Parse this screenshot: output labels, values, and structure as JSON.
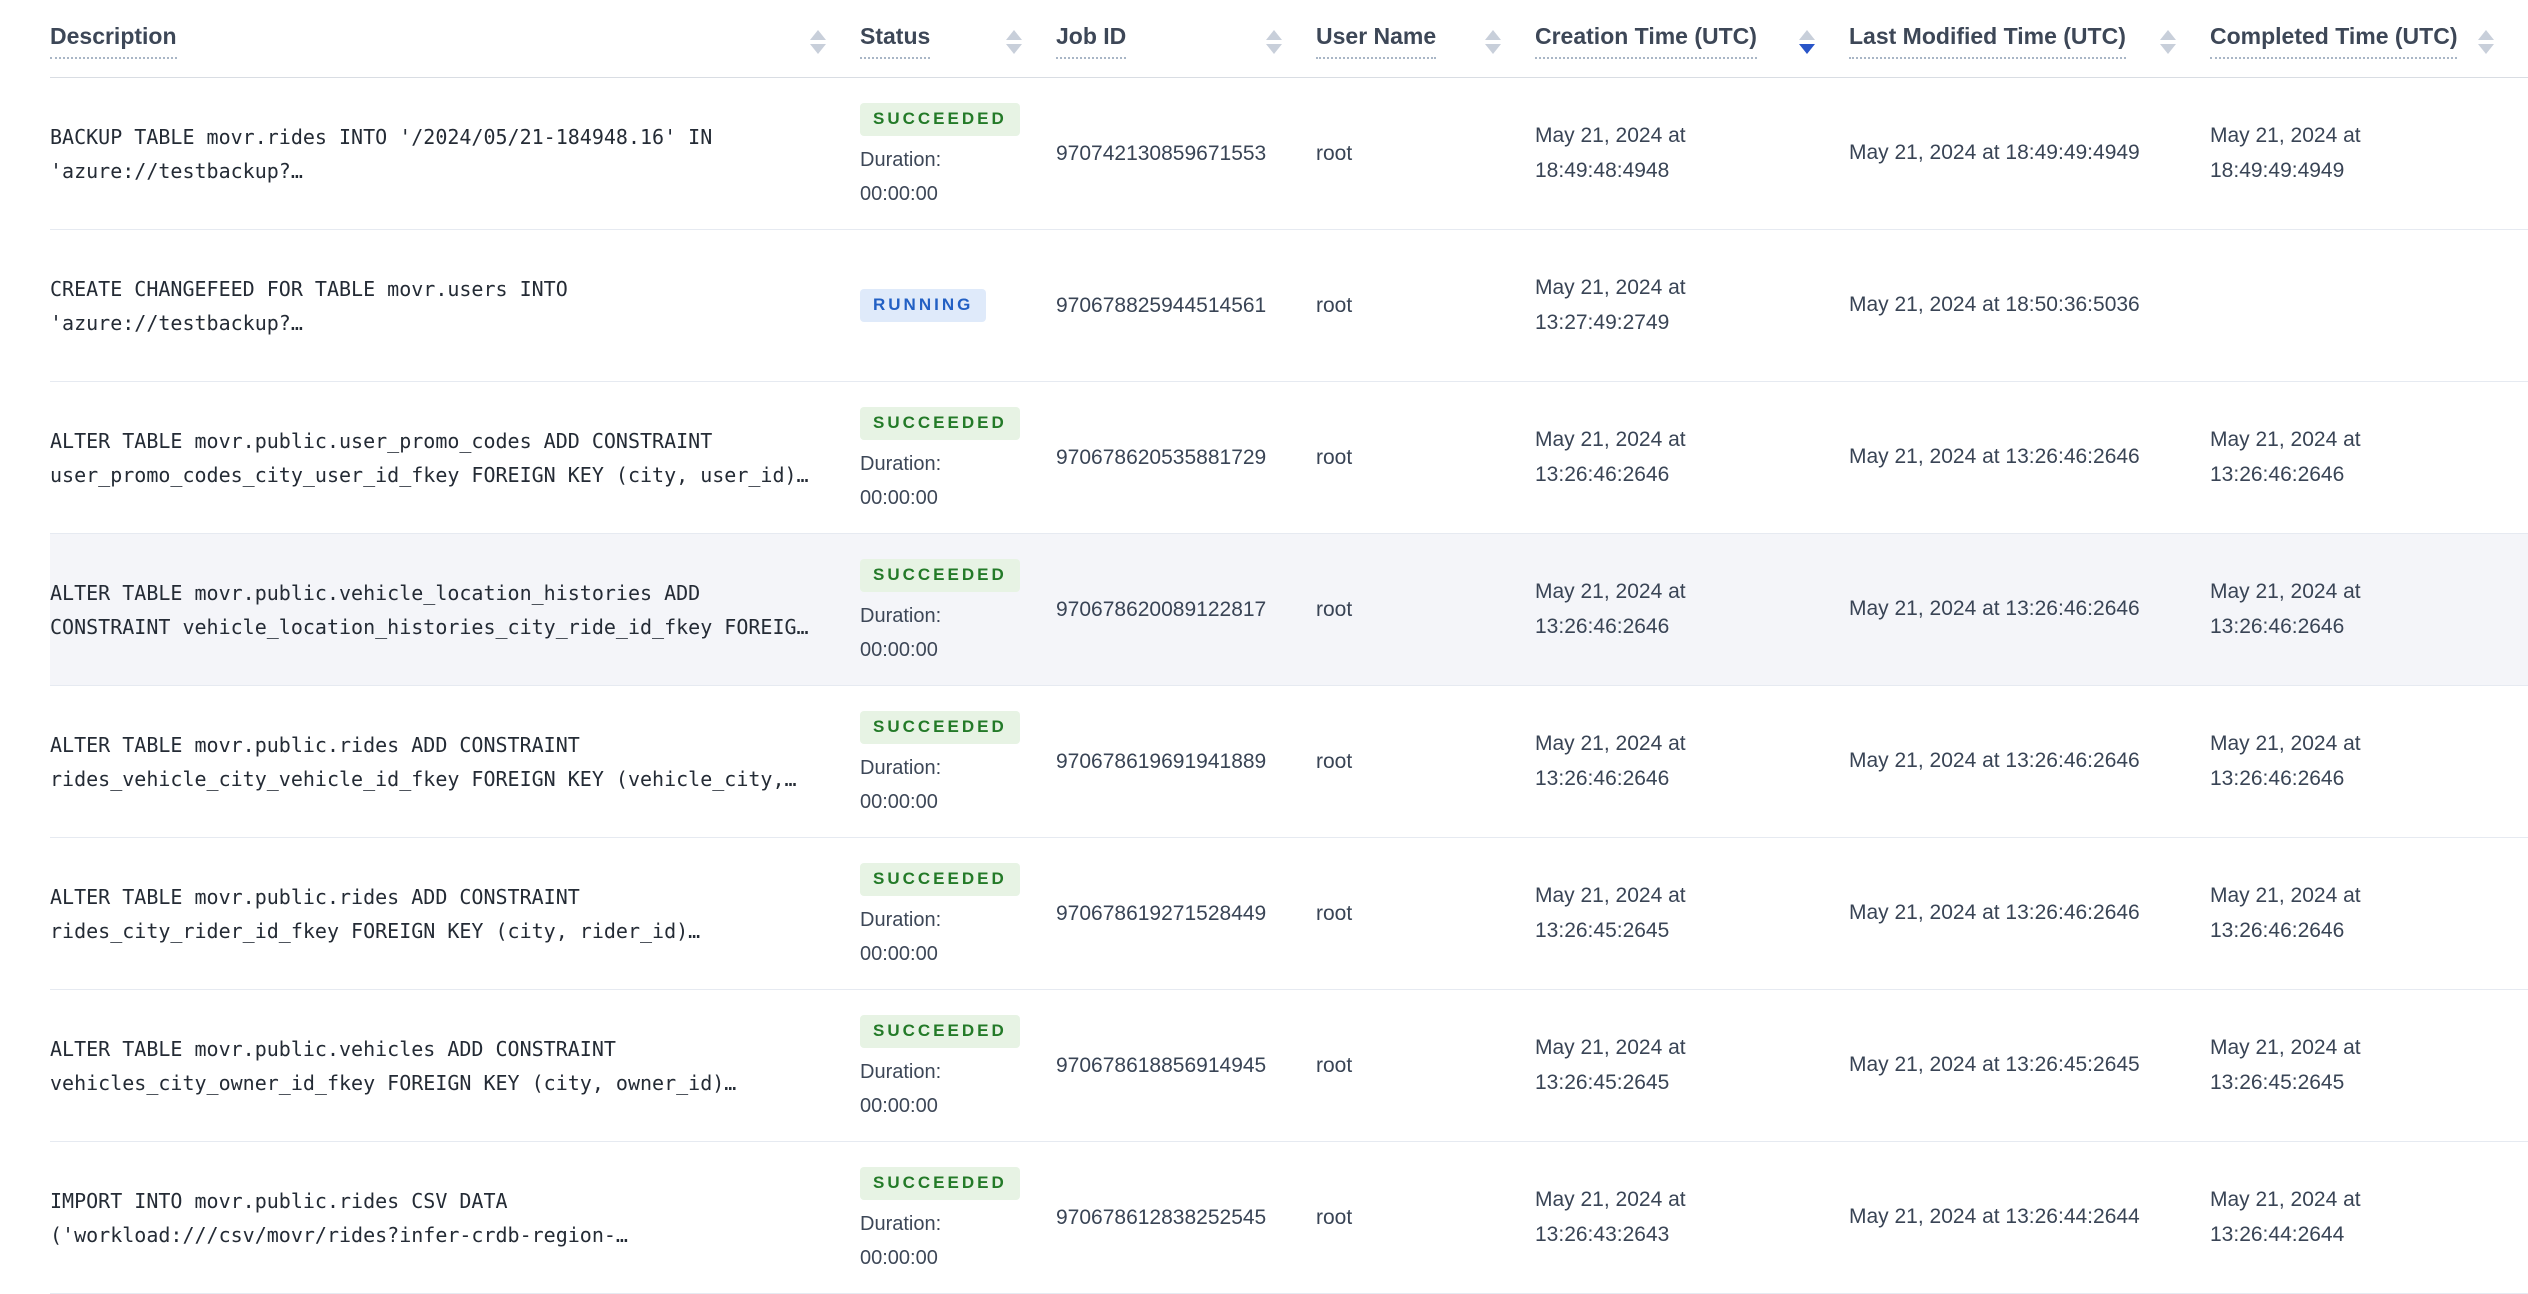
{
  "table": {
    "columns": [
      {
        "key": "description",
        "label": "Description",
        "sort": "none"
      },
      {
        "key": "status",
        "label": "Status",
        "sort": "none"
      },
      {
        "key": "job-id",
        "label": "Job ID",
        "sort": "none"
      },
      {
        "key": "user-name",
        "label": "User Name",
        "sort": "none"
      },
      {
        "key": "creation-time",
        "label": "Creation Time (UTC)",
        "sort": "desc"
      },
      {
        "key": "last-modified",
        "label": "Last Modified Time (UTC)",
        "sort": "none"
      },
      {
        "key": "completed-time",
        "label": "Completed Time (UTC)",
        "sort": "none"
      }
    ],
    "rows": [
      {
        "description": "BACKUP TABLE movr.rides INTO '/2024/05/21-184948.16' IN 'azure://testbackup?…",
        "status": "SUCCEEDED",
        "duration_label": "Duration:",
        "duration": "00:00:00",
        "job_id": "970742130859671553",
        "user_name": "root",
        "creation_time": "May 21, 2024 at 18:49:48:4948",
        "last_modified_time": "May 21, 2024 at 18:49:49:4949",
        "completed_time": "May 21, 2024 at 18:49:49:4949",
        "highlighted": false
      },
      {
        "description": "CREATE CHANGEFEED FOR TABLE movr.users INTO 'azure://testbackup?…",
        "status": "RUNNING",
        "duration_label": "",
        "duration": "",
        "job_id": "970678825944514561",
        "user_name": "root",
        "creation_time": "May 21, 2024 at 13:27:49:2749",
        "last_modified_time": "May 21, 2024 at 18:50:36:5036",
        "completed_time": "",
        "highlighted": false
      },
      {
        "description": "ALTER TABLE movr.public.user_promo_codes ADD CONSTRAINT user_promo_codes_city_user_id_fkey FOREIGN KEY (city, user_id)…",
        "status": "SUCCEEDED",
        "duration_label": "Duration:",
        "duration": "00:00:00",
        "job_id": "970678620535881729",
        "user_name": "root",
        "creation_time": "May 21, 2024 at 13:26:46:2646",
        "last_modified_time": "May 21, 2024 at 13:26:46:2646",
        "completed_time": "May 21, 2024 at 13:26:46:2646",
        "highlighted": false
      },
      {
        "description": "ALTER TABLE movr.public.vehicle_location_histories ADD CONSTRAINT vehicle_location_histories_city_ride_id_fkey FOREIG…",
        "status": "SUCCEEDED",
        "duration_label": "Duration:",
        "duration": "00:00:00",
        "job_id": "970678620089122817",
        "user_name": "root",
        "creation_time": "May 21, 2024 at 13:26:46:2646",
        "last_modified_time": "May 21, 2024 at 13:26:46:2646",
        "completed_time": "May 21, 2024 at 13:26:46:2646",
        "highlighted": true
      },
      {
        "description": "ALTER TABLE movr.public.rides ADD CONSTRAINT rides_vehicle_city_vehicle_id_fkey FOREIGN KEY (vehicle_city,…",
        "status": "SUCCEEDED",
        "duration_label": "Duration:",
        "duration": "00:00:00",
        "job_id": "970678619691941889",
        "user_name": "root",
        "creation_time": "May 21, 2024 at 13:26:46:2646",
        "last_modified_time": "May 21, 2024 at 13:26:46:2646",
        "completed_time": "May 21, 2024 at 13:26:46:2646",
        "highlighted": false
      },
      {
        "description": "ALTER TABLE movr.public.rides ADD CONSTRAINT rides_city_rider_id_fkey FOREIGN KEY (city, rider_id)…",
        "status": "SUCCEEDED",
        "duration_label": "Duration:",
        "duration": "00:00:00",
        "job_id": "970678619271528449",
        "user_name": "root",
        "creation_time": "May 21, 2024 at 13:26:45:2645",
        "last_modified_time": "May 21, 2024 at 13:26:46:2646",
        "completed_time": "May 21, 2024 at 13:26:46:2646",
        "highlighted": false
      },
      {
        "description": "ALTER TABLE movr.public.vehicles ADD CONSTRAINT vehicles_city_owner_id_fkey FOREIGN KEY (city, owner_id)…",
        "status": "SUCCEEDED",
        "duration_label": "Duration:",
        "duration": "00:00:00",
        "job_id": "970678618856914945",
        "user_name": "root",
        "creation_time": "May 21, 2024 at 13:26:45:2645",
        "last_modified_time": "May 21, 2024 at 13:26:45:2645",
        "completed_time": "May 21, 2024 at 13:26:45:2645",
        "highlighted": false
      },
      {
        "description": "IMPORT INTO movr.public.rides CSV DATA ('workload:///csv/movr/rides?infer-crdb-region-…",
        "status": "SUCCEEDED",
        "duration_label": "Duration:",
        "duration": "00:00:00",
        "job_id": "970678612838252545",
        "user_name": "root",
        "creation_time": "May 21, 2024 at 13:26:43:2643",
        "last_modified_time": "May 21, 2024 at 13:26:44:2644",
        "completed_time": "May 21, 2024 at 13:26:44:2644",
        "highlighted": false
      }
    ]
  },
  "colors": {
    "succeeded_badge_bg": "#e7f3e4",
    "succeeded_badge_text": "#237a28",
    "running_badge_bg": "#dfeafa",
    "running_badge_text": "#2260c4",
    "sort_active": "#2955c8",
    "row_highlight_bg": "#f4f5f9"
  }
}
